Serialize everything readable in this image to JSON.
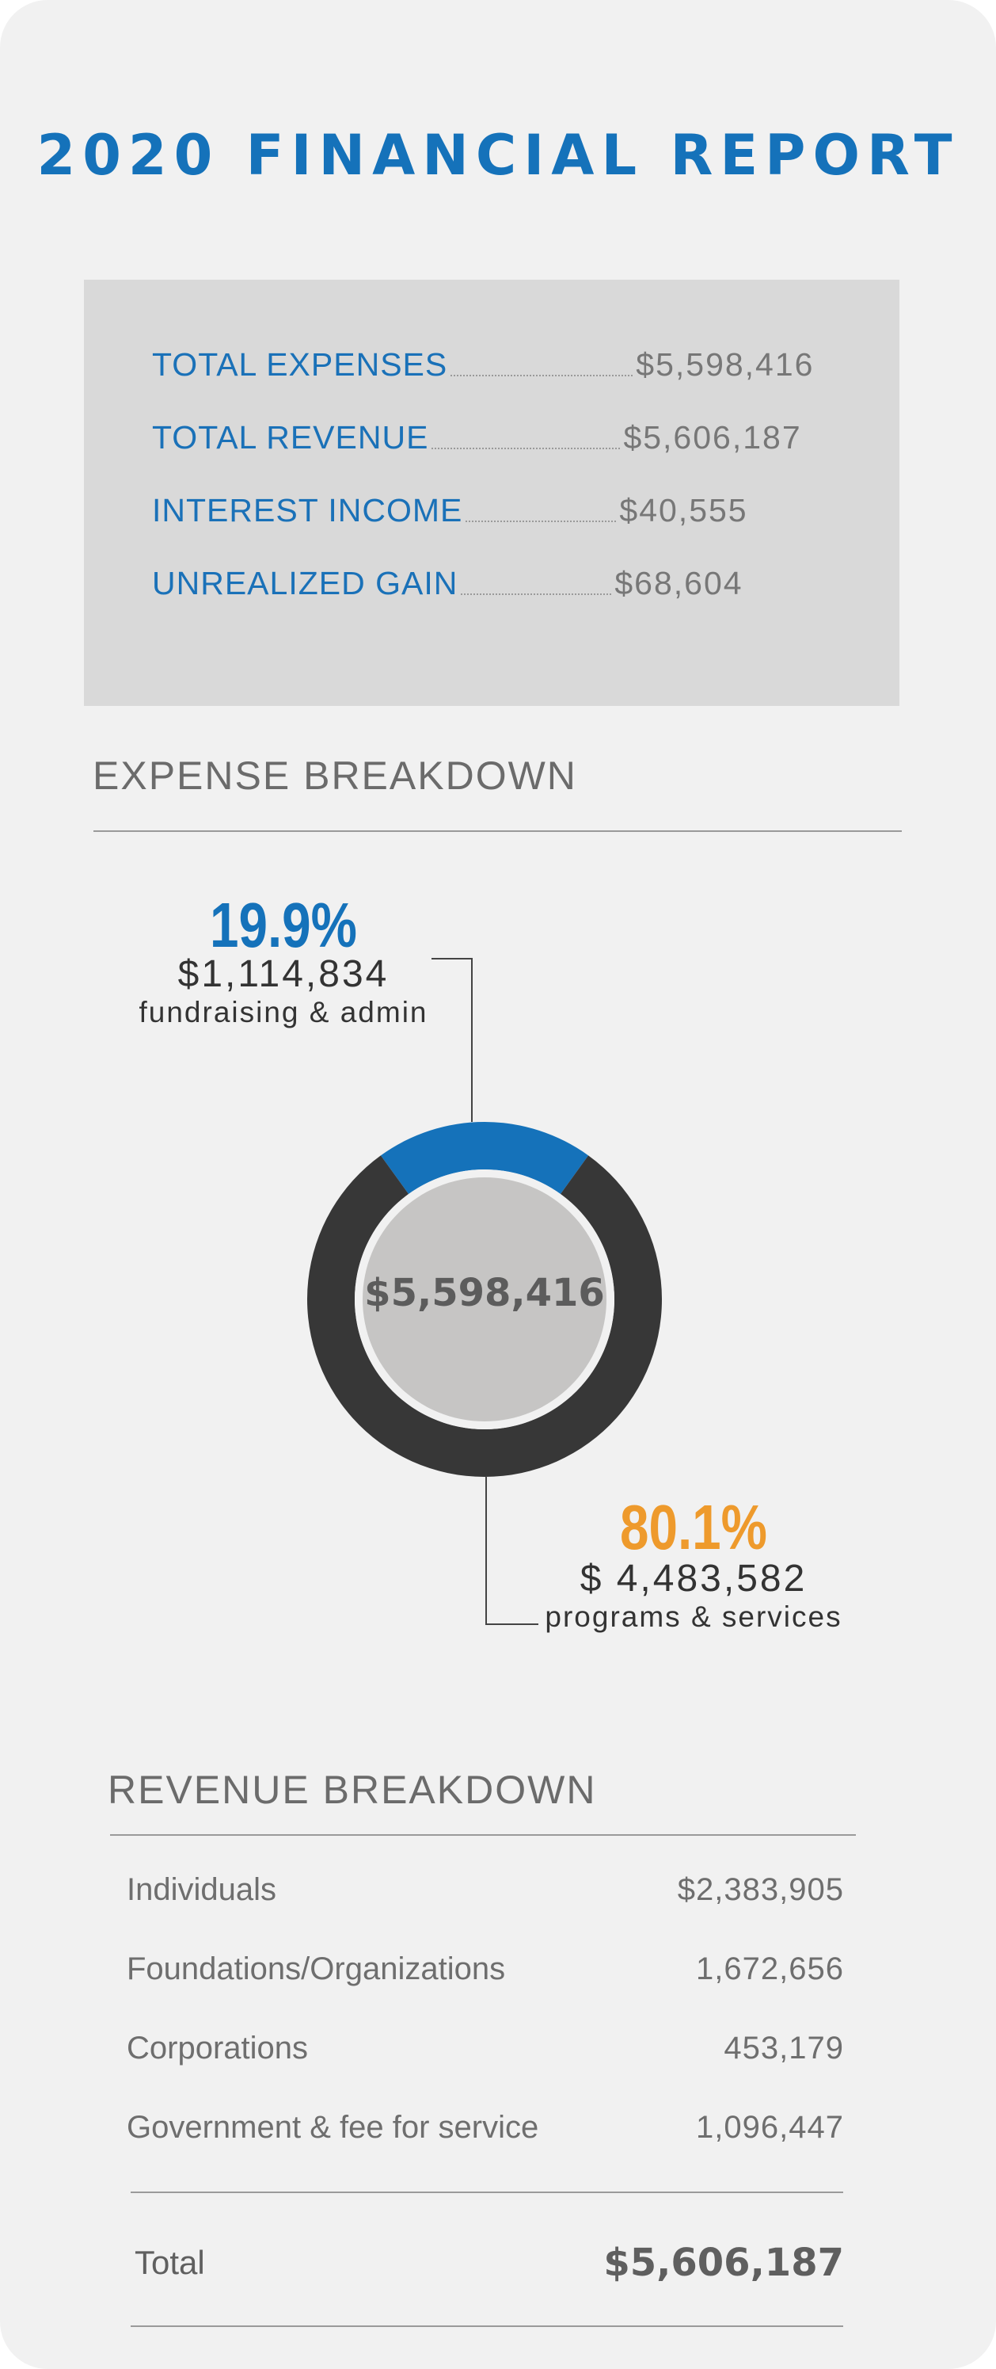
{
  "title": "2020 FINANCIAL REPORT",
  "summary": {
    "items": [
      {
        "label": "TOTAL EXPENSES",
        "value": "$5,598,416"
      },
      {
        "label": "TOTAL REVENUE",
        "value": "$5,606,187"
      },
      {
        "label": "INTEREST INCOME",
        "value": "$40,555"
      },
      {
        "label": "UNREALIZED GAIN",
        "value": "$68,604"
      }
    ]
  },
  "chart_data": {
    "type": "pie",
    "title": "EXPENSE BREAKDOWN",
    "center_label": "$5,598,416",
    "slices": [
      {
        "percent_label": "19.9%",
        "percent": 19.9,
        "amount": "$1,114,834",
        "category": "fundraising & admin",
        "color": "#1572ba",
        "label_color": "#1572ba"
      },
      {
        "percent_label": "80.1%",
        "percent": 80.1,
        "amount": "$ 4,483,582",
        "category": "programs & services",
        "color": "#373737",
        "label_color": "#ee9a2c"
      }
    ]
  },
  "revenue": {
    "heading": "REVENUE BREAKDOWN",
    "rows": [
      {
        "label": "Individuals",
        "value": "$2,383,905"
      },
      {
        "label": "Foundations/Organizations",
        "value": "1,672,656"
      },
      {
        "label": "Corporations",
        "value": "453,179"
      },
      {
        "label": "Government & fee for service",
        "value": "1,096,447"
      }
    ],
    "total_label": "Total",
    "total_value": "$5,606,187"
  }
}
